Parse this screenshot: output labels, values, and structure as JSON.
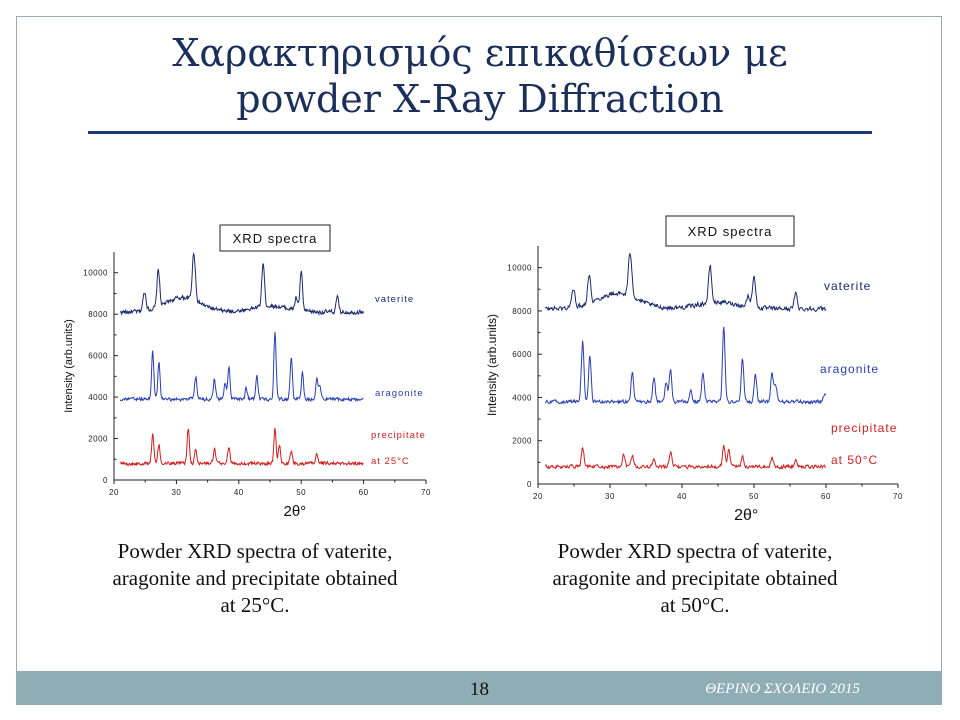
{
  "slide": {
    "title_line1": "Χαρακτηρισμός επικαθίσεων με",
    "title_line2": "powder X-Ray Diffraction",
    "page_number": "18",
    "footer_text": "ΘΕΡΙΝΟ ΣΧΟΛΕΙΟ 2015",
    "accent_color": "#1f3a7a",
    "footer_color": "#8fadb4"
  },
  "captions": [
    {
      "line1": "Powder XRD spectra of vaterite,",
      "line2": "aragonite and precipitate obtained",
      "line3": "at 25°C."
    },
    {
      "line1": "Powder XRD spectra of vaterite,",
      "line2": "aragonite and precipitate obtained",
      "line3": "at 50°C."
    }
  ],
  "chart_data": [
    {
      "type": "line",
      "title": "XRD spectra",
      "xlabel": "2θ°",
      "ylabel": "Intensity (arb.units)",
      "xlim": [
        20,
        70
      ],
      "ylim": [
        0,
        11000
      ],
      "x_ticks": [
        "20",
        "30",
        "40",
        "50",
        "60",
        "70"
      ],
      "y_ticks": [
        "0",
        "2000",
        "4000",
        "6000",
        "8000",
        "10000"
      ],
      "grid": false,
      "series": [
        {
          "name": "vaterite",
          "color": "#1c2a6e",
          "baseline": 8100,
          "noise": 140,
          "peaks": [
            [
              24.9,
              900,
              0.35
            ],
            [
              27.1,
              1800,
              0.3
            ],
            [
              32.8,
              2300,
              0.35
            ],
            [
              43.9,
              2100,
              0.3
            ],
            [
              49.2,
              600,
              0.3
            ],
            [
              50.0,
              1900,
              0.3
            ],
            [
              55.8,
              700,
              0.3
            ]
          ],
          "humps": [
            [
              31,
              700,
              4
            ],
            [
              45,
              300,
              4
            ]
          ]
        },
        {
          "name": "aragonite",
          "color": "#2a3fb0",
          "baseline": 3900,
          "noise": 110,
          "peaks": [
            [
              26.2,
              2300,
              0.25
            ],
            [
              27.2,
              1800,
              0.25
            ],
            [
              33.1,
              1100,
              0.25
            ],
            [
              36.1,
              1000,
              0.25
            ],
            [
              37.8,
              800,
              0.25
            ],
            [
              38.4,
              1600,
              0.25
            ],
            [
              41.2,
              500,
              0.25
            ],
            [
              42.9,
              1200,
              0.25
            ],
            [
              45.8,
              3300,
              0.25
            ],
            [
              48.4,
              2000,
              0.25
            ],
            [
              50.2,
              1300,
              0.25
            ],
            [
              52.5,
              1000,
              0.25
            ],
            [
              53.0,
              700,
              0.25
            ]
          ],
          "humps": []
        },
        {
          "name": "precipitate",
          "label2": "at 25°C",
          "color": "#cc1f1f",
          "baseline": 800,
          "noise": 110,
          "peaks": [
            [
              26.2,
              1400,
              0.25
            ],
            [
              27.2,
              900,
              0.25
            ],
            [
              31.9,
              1700,
              0.25
            ],
            [
              33.1,
              700,
              0.25
            ],
            [
              36.1,
              700,
              0.25
            ],
            [
              38.4,
              800,
              0.25
            ],
            [
              45.8,
              1700,
              0.25
            ],
            [
              46.5,
              900,
              0.25
            ],
            [
              48.4,
              600,
              0.25
            ],
            [
              52.5,
              500,
              0.25
            ]
          ],
          "humps": []
        }
      ]
    },
    {
      "type": "line",
      "title": "XRD spectra",
      "xlabel": "2θ°",
      "ylabel": "Intensity (arb.units)",
      "xlim": [
        20,
        70
      ],
      "ylim": [
        0,
        11000
      ],
      "x_ticks": [
        "20",
        "30",
        "40",
        "50",
        "60",
        "70"
      ],
      "y_ticks": [
        "0",
        "2000",
        "4000",
        "6000",
        "8000",
        "10000"
      ],
      "grid": false,
      "series": [
        {
          "name": "vaterite",
          "color": "#1c2a6e",
          "baseline": 8100,
          "noise": 140,
          "peaks": [
            [
              24.9,
              800,
              0.35
            ],
            [
              27.1,
              1300,
              0.3
            ],
            [
              32.8,
              2000,
              0.35
            ],
            [
              43.9,
              1700,
              0.3
            ],
            [
              49.2,
              500,
              0.3
            ],
            [
              50.0,
              1500,
              0.3
            ],
            [
              55.8,
              700,
              0.3
            ]
          ],
          "humps": [
            [
              31,
              700,
              4
            ],
            [
              45,
              300,
              4
            ]
          ]
        },
        {
          "name": "aragonite",
          "color": "#2a3fb0",
          "baseline": 3800,
          "noise": 110,
          "peaks": [
            [
              26.2,
              2800,
              0.25
            ],
            [
              27.2,
              2100,
              0.25
            ],
            [
              33.1,
              1400,
              0.25
            ],
            [
              36.1,
              1100,
              0.25
            ],
            [
              37.8,
              900,
              0.25
            ],
            [
              38.4,
              1500,
              0.25
            ],
            [
              41.2,
              500,
              0.25
            ],
            [
              42.9,
              1300,
              0.25
            ],
            [
              45.8,
              3500,
              0.25
            ],
            [
              48.4,
              2000,
              0.25
            ],
            [
              50.2,
              1300,
              0.25
            ],
            [
              52.5,
              1300,
              0.25
            ],
            [
              53.0,
              800,
              0.25
            ],
            [
              59.8,
              400,
              0.25
            ]
          ],
          "humps": []
        },
        {
          "name": "precipitate",
          "label2": "at 50°C",
          "color": "#cc1f1f",
          "baseline": 800,
          "noise": 110,
          "peaks": [
            [
              26.2,
              900,
              0.25
            ],
            [
              31.9,
              600,
              0.25
            ],
            [
              33.1,
              500,
              0.25
            ],
            [
              36.1,
              400,
              0.25
            ],
            [
              38.4,
              700,
              0.25
            ],
            [
              45.8,
              1000,
              0.25
            ],
            [
              46.5,
              800,
              0.25
            ],
            [
              48.4,
              500,
              0.25
            ],
            [
              52.5,
              400,
              0.25
            ],
            [
              55.8,
              300,
              0.25
            ]
          ],
          "humps": []
        }
      ]
    }
  ]
}
